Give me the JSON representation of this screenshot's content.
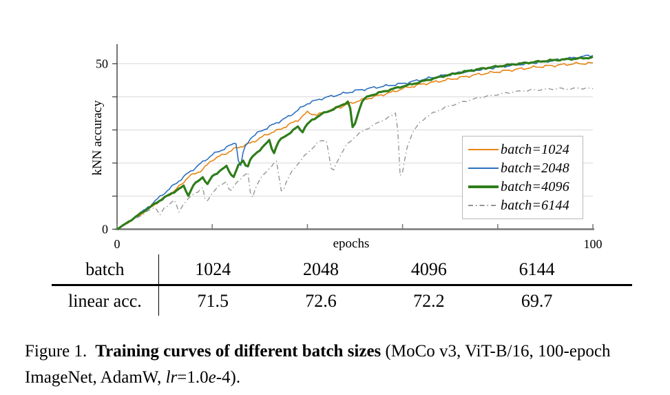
{
  "figure": {
    "caption": {
      "label": "Figure 1.",
      "title_bold": "Training curves of different batch sizes",
      "detail_prefix": "(MoCo v3, ViT-B/16, 100-epoch ImageNet, AdamW,",
      "lr_italic": "lr",
      "detail_mid": "=1.0",
      "e_italic": "e",
      "detail_suffix": "-4)."
    }
  },
  "table": {
    "rows": [
      {
        "cells": [
          "batch",
          "1024",
          "2048",
          "4096",
          "6144"
        ]
      },
      {
        "cells": [
          "linear acc.",
          "71.5",
          "72.6",
          "72.2",
          "69.7"
        ]
      }
    ]
  },
  "chart_data": {
    "type": "line",
    "title": "",
    "xlabel": "epochs",
    "ylabel": "kNN accuracy",
    "xlim": [
      0,
      100
    ],
    "ylim": [
      0,
      55
    ],
    "x_ticks": [
      0,
      20,
      40,
      60,
      80,
      100
    ],
    "x_tick_labels": {
      "0": "0",
      "100": "100"
    },
    "y_ticks": [
      0,
      10,
      20,
      30,
      40,
      50
    ],
    "y_tick_labels": {
      "0": "0",
      "50": "50"
    },
    "grid": "horizontal",
    "legend_position": "center-right",
    "axis_colors": {
      "bottom_axis": "#777777",
      "left_spine": "#3a3a3a",
      "gridline": "#d9d9d9"
    },
    "series": [
      {
        "name": "batch=1024",
        "color": "#e8830e",
        "width": 1.6,
        "dash": null,
        "points": [
          [
            0,
            0
          ],
          [
            3,
            2.6
          ],
          [
            6,
            5.6
          ],
          [
            9,
            8.6
          ],
          [
            12,
            11.4
          ],
          [
            15,
            15.8
          ],
          [
            18,
            18
          ],
          [
            20,
            21
          ],
          [
            22,
            22.3
          ],
          [
            25,
            24.5
          ],
          [
            28,
            26
          ],
          [
            30,
            27.5
          ],
          [
            32,
            29
          ],
          [
            34,
            30
          ],
          [
            36,
            31.5
          ],
          [
            38,
            33
          ],
          [
            40,
            35.3
          ],
          [
            42,
            34.5
          ],
          [
            44,
            35.5
          ],
          [
            46,
            36.5
          ],
          [
            50,
            38.5
          ],
          [
            54,
            40
          ],
          [
            58,
            41.5
          ],
          [
            60,
            42.5
          ],
          [
            64,
            43.8
          ],
          [
            68,
            44.8
          ],
          [
            72,
            45.8
          ],
          [
            76,
            46.8
          ],
          [
            80,
            47.6
          ],
          [
            84,
            48.3
          ],
          [
            88,
            49
          ],
          [
            92,
            49.5
          ],
          [
            96,
            50
          ],
          [
            100,
            50.2
          ]
        ]
      },
      {
        "name": "batch=2048",
        "color": "#2a6fbe",
        "width": 1.6,
        "dash": null,
        "points": [
          [
            0,
            0
          ],
          [
            3,
            2.7
          ],
          [
            6,
            6
          ],
          [
            10,
            11
          ],
          [
            15,
            17
          ],
          [
            20,
            22.5
          ],
          [
            25,
            26.2
          ],
          [
            25.8,
            17.5
          ],
          [
            26.6,
            24
          ],
          [
            28,
            27.5
          ],
          [
            30,
            29.5
          ],
          [
            32,
            31
          ],
          [
            34,
            32.5
          ],
          [
            36,
            34
          ],
          [
            38,
            36
          ],
          [
            40,
            38
          ],
          [
            43,
            39.5
          ],
          [
            46,
            40.5
          ],
          [
            50,
            41.8
          ],
          [
            54,
            42.8
          ],
          [
            58,
            43.6
          ],
          [
            60,
            44
          ],
          [
            64,
            45.2
          ],
          [
            68,
            46.3
          ],
          [
            72,
            47.3
          ],
          [
            76,
            48.2
          ],
          [
            80,
            49
          ],
          [
            84,
            49.7
          ],
          [
            88,
            50.4
          ],
          [
            92,
            51
          ],
          [
            96,
            51.8
          ],
          [
            100,
            52.6
          ]
        ]
      },
      {
        "name": "batch=4096",
        "color": "#2e7d1a",
        "width": 3.2,
        "dash": null,
        "points": [
          [
            0,
            0
          ],
          [
            3,
            2.8
          ],
          [
            6,
            5.8
          ],
          [
            9,
            8.7
          ],
          [
            12,
            11.3
          ],
          [
            14,
            13
          ],
          [
            15,
            10.2
          ],
          [
            16,
            13.2
          ],
          [
            18,
            15.8
          ],
          [
            19,
            13.5
          ],
          [
            20,
            16
          ],
          [
            21,
            17
          ],
          [
            23,
            19
          ],
          [
            24.4,
            15.5
          ],
          [
            25.4,
            19
          ],
          [
            26.5,
            20.8
          ],
          [
            27.3,
            18.5
          ],
          [
            28.2,
            21.5
          ],
          [
            30,
            24
          ],
          [
            32,
            26.8
          ],
          [
            32.9,
            22.7
          ],
          [
            33.8,
            26.3
          ],
          [
            35,
            27.8
          ],
          [
            36.5,
            29.3
          ],
          [
            38,
            31
          ],
          [
            38.9,
            29.3
          ],
          [
            39.8,
            31.5
          ],
          [
            41,
            33
          ],
          [
            43,
            34.8
          ],
          [
            45,
            36
          ],
          [
            47,
            37.3
          ],
          [
            48.8,
            38.8
          ],
          [
            49.6,
            29.6
          ],
          [
            50.6,
            35
          ],
          [
            51.6,
            39
          ],
          [
            53,
            40.3
          ],
          [
            55,
            41.2
          ],
          [
            57,
            42
          ],
          [
            59,
            42.8
          ],
          [
            61,
            43.5
          ],
          [
            63,
            44.2
          ],
          [
            65,
            45
          ],
          [
            67,
            45.7
          ],
          [
            69,
            46.4
          ],
          [
            71,
            47
          ],
          [
            73,
            47.6
          ],
          [
            75,
            48.1
          ],
          [
            77,
            48.6
          ],
          [
            79,
            49
          ],
          [
            81,
            49.4
          ],
          [
            83,
            49.8
          ],
          [
            85,
            50.1
          ],
          [
            87,
            50.4
          ],
          [
            89,
            50.7
          ],
          [
            91,
            51
          ],
          [
            93,
            51.2
          ],
          [
            95,
            51.4
          ],
          [
            97,
            51.6
          ],
          [
            100,
            51.9
          ]
        ]
      },
      {
        "name": "batch=6144",
        "color": "#949494",
        "width": 1.4,
        "dash": "7 4 1.5 4",
        "points": [
          [
            0,
            0
          ],
          [
            3,
            2.5
          ],
          [
            6,
            5
          ],
          [
            8,
            6.8
          ],
          [
            9,
            4.2
          ],
          [
            10,
            6.5
          ],
          [
            12,
            8.8
          ],
          [
            13,
            5.2
          ],
          [
            14,
            7.8
          ],
          [
            16,
            10.5
          ],
          [
            18,
            12.5
          ],
          [
            18.7,
            7.6
          ],
          [
            19.7,
            10.5
          ],
          [
            21,
            12.5
          ],
          [
            23,
            14.5
          ],
          [
            23.8,
            11
          ],
          [
            24.8,
            13.5
          ],
          [
            26,
            15.5
          ],
          [
            27.5,
            17
          ],
          [
            28.2,
            8.6
          ],
          [
            29.2,
            13
          ],
          [
            30.5,
            16
          ],
          [
            32,
            18.5
          ],
          [
            33.5,
            20.5
          ],
          [
            34.6,
            10.8
          ],
          [
            35.8,
            15
          ],
          [
            37,
            18
          ],
          [
            39,
            21.5
          ],
          [
            41,
            24.5
          ],
          [
            42.5,
            26.5
          ],
          [
            44,
            27
          ],
          [
            45.2,
            16.6
          ],
          [
            46.4,
            21
          ],
          [
            48,
            25
          ],
          [
            50,
            28
          ],
          [
            52,
            30
          ],
          [
            54,
            31.5
          ],
          [
            56,
            33
          ],
          [
            58,
            34.5
          ],
          [
            58.8,
            35.6
          ],
          [
            59.6,
            13.5
          ],
          [
            60.8,
            24
          ],
          [
            62,
            29
          ],
          [
            63.5,
            32
          ],
          [
            65,
            34
          ],
          [
            67,
            35.5
          ],
          [
            69,
            36.8
          ],
          [
            71,
            37.8
          ],
          [
            73,
            38.6
          ],
          [
            75,
            39.3
          ],
          [
            77,
            40
          ],
          [
            79,
            40.5
          ],
          [
            81,
            41
          ],
          [
            83,
            41.4
          ],
          [
            85,
            41.7
          ],
          [
            87,
            42
          ],
          [
            89,
            42.2
          ],
          [
            91,
            42.4
          ],
          [
            93,
            42.5
          ],
          [
            95,
            42.3
          ],
          [
            97,
            42.6
          ],
          [
            100,
            42.5
          ]
        ]
      }
    ]
  }
}
